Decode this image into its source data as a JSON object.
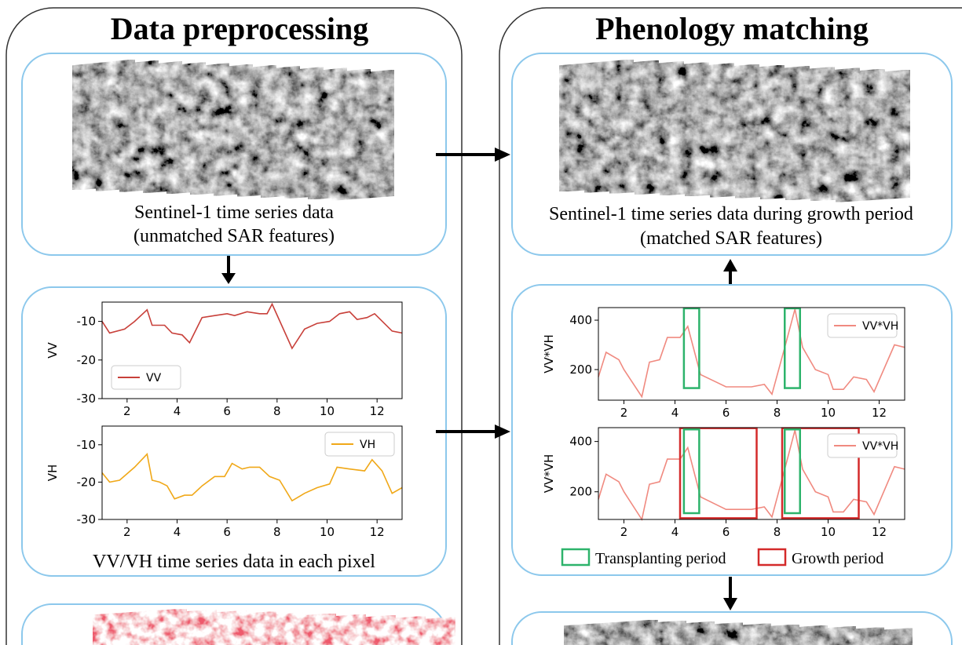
{
  "left_panel": {
    "title": "Data preprocessing",
    "sar_caption": [
      "Sentinel-1 time series data",
      "(unmatched SAR features)"
    ],
    "charts": [
      {
        "type": "line",
        "ylabel": "VV",
        "legend": "lower left",
        "xlim": [
          1,
          13
        ],
        "ylim": [
          -30,
          -5
        ],
        "xticks": [
          2,
          4,
          6,
          8,
          10,
          12
        ],
        "yticks": [
          -10,
          -20,
          -30
        ],
        "series": [
          {
            "name": "VV",
            "color": "#c8403a",
            "x": [
              1,
              1.3,
              1.9,
              2.3,
              2.8,
              3.0,
              3.5,
              3.8,
              4.2,
              4.5,
              5.0,
              5.5,
              6.0,
              6.3,
              6.8,
              7.3,
              7.6,
              7.8,
              8.6,
              9.1,
              9.6,
              10.1,
              10.5,
              10.9,
              11.2,
              11.6,
              11.9,
              12.6,
              13
            ],
            "values": [
              -10,
              -13,
              -12,
              -10,
              -7,
              -11,
              -11,
              -13,
              -13.5,
              -15.5,
              -9,
              -8.5,
              -8,
              -8.5,
              -7.5,
              -8,
              -8,
              -5.5,
              -17,
              -12,
              -10.5,
              -10,
              -8,
              -7.5,
              -9.5,
              -9,
              -8,
              -12.5,
              -13
            ]
          }
        ]
      },
      {
        "type": "line",
        "ylabel": "VH",
        "legend": "upper right",
        "xlim": [
          1,
          13
        ],
        "ylim": [
          -30,
          -5
        ],
        "xticks": [
          2,
          4,
          6,
          8,
          10,
          12
        ],
        "yticks": [
          -10,
          -20,
          -30
        ],
        "series": [
          {
            "name": "VH",
            "color": "#f0a818",
            "x": [
              1,
              1.3,
              1.7,
              2.3,
              2.8,
              3.0,
              3.3,
              3.6,
              3.9,
              4.3,
              4.6,
              5.0,
              5.5,
              5.9,
              6.2,
              6.6,
              6.9,
              7.3,
              7.7,
              8.1,
              8.6,
              9.1,
              9.6,
              10.1,
              10.4,
              10.9,
              11.5,
              11.8,
              12.2,
              12.6,
              13
            ],
            "values": [
              -17.5,
              -20,
              -19.5,
              -16,
              -12.5,
              -19.5,
              -20,
              -21,
              -24.5,
              -23.5,
              -23.5,
              -21,
              -18.5,
              -18.5,
              -15,
              -16.5,
              -16,
              -16,
              -18.5,
              -19.5,
              -25,
              -23,
              -21.5,
              -20.5,
              -16,
              -16.5,
              -17,
              -14,
              -17,
              -23,
              -21.5
            ]
          }
        ]
      }
    ],
    "chart_caption": "VV/VH time series data in each pixel"
  },
  "right_panel": {
    "title": "Phenology matching",
    "sar_caption": [
      "Sentinel-1 time series data during growth period",
      "(matched SAR features)"
    ],
    "charts": [
      {
        "type": "line",
        "ylabel": "VV*VH",
        "legend": "upper right",
        "xlim": [
          1,
          13
        ],
        "ylim": [
          76,
          451
        ],
        "xticks": [
          2,
          4,
          6,
          8,
          10,
          12
        ],
        "yticks": [
          200,
          400
        ],
        "series": [
          {
            "name": "VV*VH",
            "color": "#f08a80",
            "x": [
              1,
              1.3,
              1.8,
              2.0,
              2.7,
              3.0,
              3.4,
              3.7,
              4.0,
              4.2,
              4.5,
              5.0,
              5.6,
              6.0,
              6.6,
              7.0,
              7.5,
              7.8,
              8.3,
              8.7,
              9.0,
              9.5,
              10.0,
              10.2,
              10.6,
              11.0,
              11.5,
              11.8,
              12.6,
              13
            ],
            "values": [
              170,
              270,
              240,
              200,
              90,
              230,
              240,
              330,
              330,
              330,
              375,
              180,
              150,
              130,
              130,
              130,
              140,
              100,
              290,
              445,
              290,
              200,
              180,
              120,
              120,
              170,
              160,
              110,
              300,
              290
            ]
          }
        ],
        "highlights": [
          {
            "color": "#2db36b",
            "xrange": [
              4.35,
              4.95
            ],
            "yrange": [
              125,
              448
            ]
          },
          {
            "color": "#2db36b",
            "xrange": [
              8.3,
              8.9
            ],
            "yrange": [
              125,
              448
            ]
          }
        ]
      },
      {
        "type": "line",
        "ylabel": "VV*VH",
        "legend": "upper right",
        "xlim": [
          1,
          13
        ],
        "ylim": [
          90,
          455
        ],
        "xticks": [
          2,
          4,
          6,
          8,
          10,
          12
        ],
        "yticks": [
          200,
          400
        ],
        "series": [
          {
            "name": "VV*VH",
            "color": "#f08a80",
            "x": [
              1,
              1.3,
              1.8,
              2.0,
              2.7,
              3.0,
              3.4,
              3.7,
              4.0,
              4.2,
              4.5,
              5.0,
              5.6,
              6.0,
              6.6,
              7.0,
              7.5,
              7.8,
              8.3,
              8.7,
              9.0,
              9.5,
              10.0,
              10.2,
              10.6,
              11.0,
              11.5,
              11.8,
              12.6,
              13
            ],
            "values": [
              170,
              270,
              240,
              200,
              90,
              230,
              240,
              330,
              330,
              330,
              375,
              180,
              150,
              130,
              130,
              130,
              140,
              100,
              290,
              445,
              290,
              200,
              180,
              120,
              120,
              170,
              160,
              110,
              300,
              290
            ]
          }
        ],
        "highlights": [
          {
            "color": "#d42a2a",
            "xrange": [
              4.2,
              7.2
            ],
            "yrange": [
              95,
              453
            ]
          },
          {
            "color": "#d42a2a",
            "xrange": [
              8.2,
              11.2
            ],
            "yrange": [
              95,
              453
            ]
          },
          {
            "color": "#2db36b",
            "xrange": [
              4.35,
              4.95
            ],
            "yrange": [
              115,
              448
            ]
          },
          {
            "color": "#2db36b",
            "xrange": [
              8.3,
              8.9
            ],
            "yrange": [
              115,
              448
            ]
          }
        ]
      }
    ],
    "period_legend": [
      {
        "label": "Transplanting period",
        "color": "#2db36b"
      },
      {
        "label": "Growth period",
        "color": "#d42a2a"
      }
    ]
  }
}
